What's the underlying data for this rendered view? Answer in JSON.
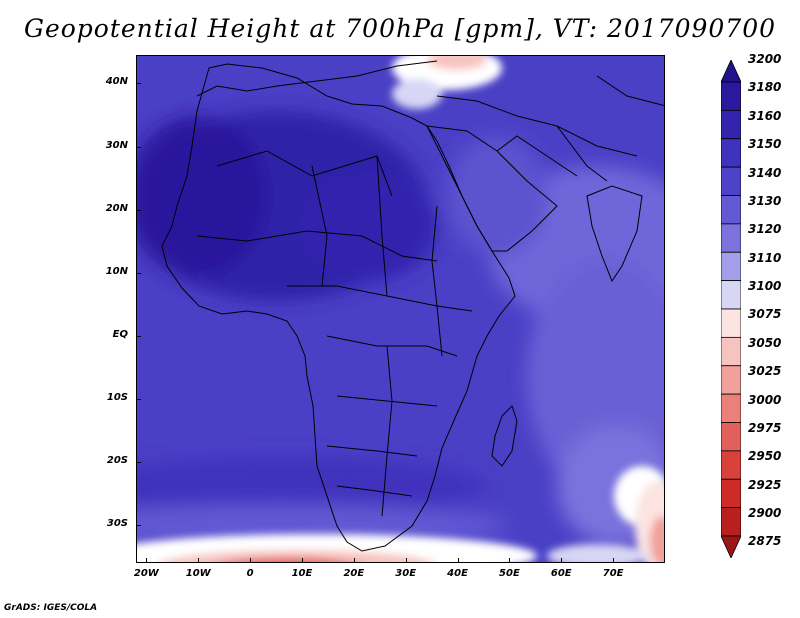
{
  "title": "Geopotential Height at 700hPa [gpm], VT: 2017090700",
  "credit": "GrADS: IGES/COLA",
  "map": {
    "lon_range": [
      -22,
      80
    ],
    "lat_range": [
      -36,
      44.5
    ],
    "lat_ticks": [
      {
        "value": 40,
        "label": "40N"
      },
      {
        "value": 30,
        "label": "30N"
      },
      {
        "value": 20,
        "label": "20N"
      },
      {
        "value": 10,
        "label": "10N"
      },
      {
        "value": 0,
        "label": "EQ"
      },
      {
        "value": -10,
        "label": "10S"
      },
      {
        "value": -20,
        "label": "20S"
      },
      {
        "value": -30,
        "label": "30S"
      }
    ],
    "lon_ticks": [
      {
        "value": -20,
        "label": "20W"
      },
      {
        "value": -10,
        "label": "10W"
      },
      {
        "value": 0,
        "label": "0"
      },
      {
        "value": 10,
        "label": "10E"
      },
      {
        "value": 20,
        "label": "20E"
      },
      {
        "value": 30,
        "label": "30E"
      },
      {
        "value": 40,
        "label": "40E"
      },
      {
        "value": 50,
        "label": "50E"
      },
      {
        "value": 60,
        "label": "60E"
      },
      {
        "value": 70,
        "label": "70E"
      }
    ]
  },
  "colorbar": {
    "levels": [
      {
        "label": "3200",
        "color": "#22138c"
      },
      {
        "label": "3180",
        "color": "#2a199c"
      },
      {
        "label": "3160",
        "color": "#3324ad"
      },
      {
        "label": "3150",
        "color": "#3f33bd"
      },
      {
        "label": "3140",
        "color": "#4d43c8"
      },
      {
        "label": "3130",
        "color": "#6259d3"
      },
      {
        "label": "3120",
        "color": "#7b72dd"
      },
      {
        "label": "3110",
        "color": "#a29ee9"
      },
      {
        "label": "3100",
        "color": "#d8d6f5"
      },
      {
        "label": "3075",
        "color": "#fbe4e2"
      },
      {
        "label": "3050",
        "color": "#f6c4c0"
      },
      {
        "label": "3025",
        "color": "#f0a19b"
      },
      {
        "label": "3000",
        "color": "#e98079"
      },
      {
        "label": "2975",
        "color": "#e2605a"
      },
      {
        "label": "2950",
        "color": "#d9413d"
      },
      {
        "label": "2925",
        "color": "#cd2a28"
      },
      {
        "label": "2900",
        "color": "#b81f1f"
      },
      {
        "label": "2875",
        "color": "#9a1717"
      }
    ]
  }
}
